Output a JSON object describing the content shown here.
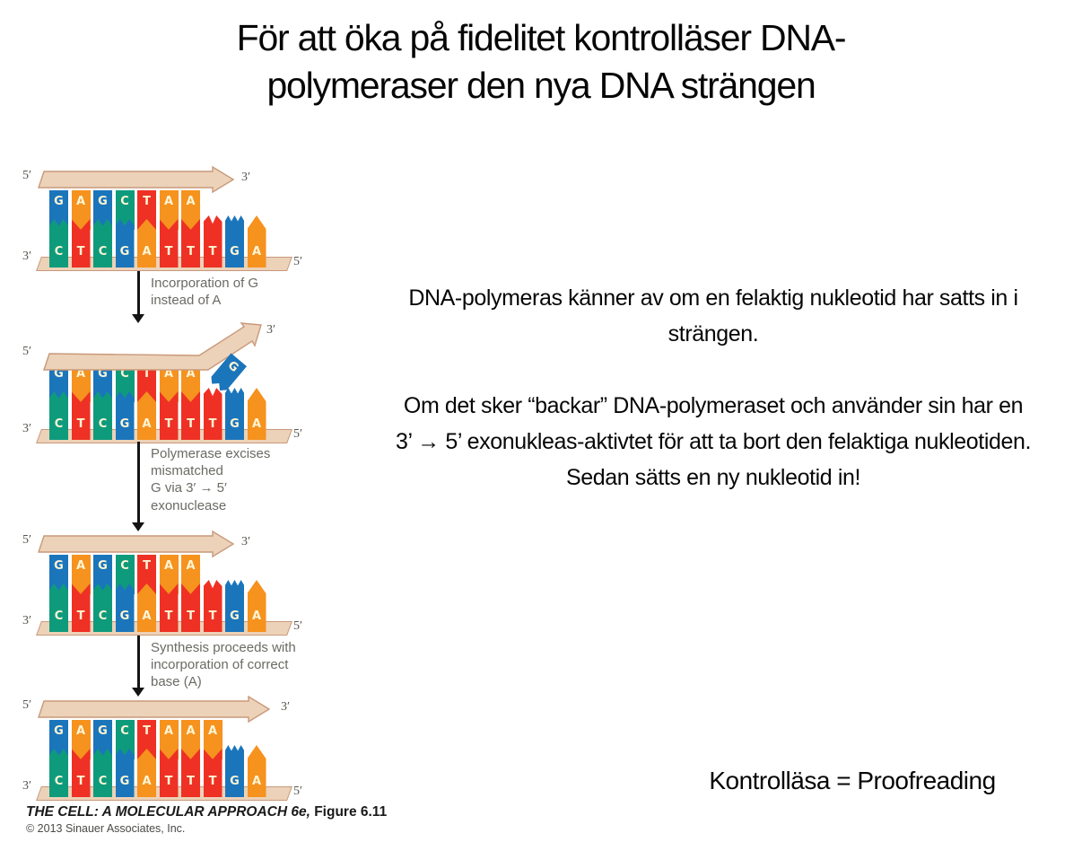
{
  "slide": {
    "title": "För att öka på fidelitet kontrolläser DNA-\npolymeraser den nya DNA strängen"
  },
  "figure": {
    "tan": "#ecd2b8",
    "tan_border": "#c9997b",
    "base_colors": {
      "G": "#1b75bb",
      "A": "#f6921e",
      "C": "#0e9b7c",
      "T": "#ee3124"
    },
    "panels": [
      {
        "arrow": "short",
        "pairs": [
          [
            "G",
            "C"
          ],
          [
            "A",
            "T"
          ],
          [
            "G",
            "C"
          ],
          [
            "C",
            "G"
          ],
          [
            "T",
            "A"
          ],
          [
            "A",
            "T"
          ],
          [
            "A",
            "T"
          ]
        ],
        "unpaired": [
          "T",
          "G",
          "A"
        ],
        "floating": null,
        "labels": {
          "top_left": "5′",
          "top_right": "3′",
          "bottom_left": "3′",
          "bottom_right": "5′"
        }
      },
      {
        "arrow": "bent",
        "pairs": [
          [
            "G",
            "C"
          ],
          [
            "A",
            "T"
          ],
          [
            "G",
            "C"
          ],
          [
            "C",
            "G"
          ],
          [
            "T",
            "A"
          ],
          [
            "A",
            "T"
          ],
          [
            "A",
            "T"
          ]
        ],
        "unpaired": [
          "T",
          "G",
          "A"
        ],
        "floating": "G",
        "labels": {
          "top_left": "5′",
          "top_right": "3′",
          "bottom_left": "3′",
          "bottom_right": "5′"
        }
      },
      {
        "arrow": "short",
        "pairs": [
          [
            "G",
            "C"
          ],
          [
            "A",
            "T"
          ],
          [
            "G",
            "C"
          ],
          [
            "C",
            "G"
          ],
          [
            "T",
            "A"
          ],
          [
            "A",
            "T"
          ],
          [
            "A",
            "T"
          ]
        ],
        "unpaired": [
          "T",
          "G",
          "A"
        ],
        "floating": null,
        "labels": {
          "top_left": "5′",
          "top_right": "3′",
          "bottom_left": "3′",
          "bottom_right": "5′"
        }
      },
      {
        "arrow": "long",
        "pairs": [
          [
            "G",
            "C"
          ],
          [
            "A",
            "T"
          ],
          [
            "G",
            "C"
          ],
          [
            "C",
            "G"
          ],
          [
            "T",
            "A"
          ],
          [
            "A",
            "T"
          ],
          [
            "A",
            "T"
          ],
          [
            "A",
            "T"
          ]
        ],
        "unpaired": [
          "G",
          "A"
        ],
        "floating": null,
        "labels": {
          "top_left": "5′",
          "top_right": "3′",
          "bottom_left": "3′",
          "bottom_right": "5′"
        }
      }
    ],
    "steps": [
      {
        "text": "Incorporation of G\ninstead of A"
      },
      {
        "text": "Polymerase excises\nmismatched\nG via 3′ → 5′\nexonuclease"
      },
      {
        "text": "Synthesis proceeds with\nincorporation of correct\nbase (A)"
      }
    ],
    "credit": {
      "book": "THE CELL: A MOLECULAR APPROACH 6e,",
      "figure": " Figure 6.11",
      "copyright": "© 2013 Sinauer Associates, Inc."
    }
  },
  "body": {
    "para1": "DNA-polymeras känner av om en felaktig nukleotid har satts in i strängen.",
    "para2": "Om det sker “backar” DNA-polymeraset och använder sin har en 3’ → 5’ exonukleas-aktivtet för att ta bort den felaktiga nukleotiden. Sedan sätts en ny nukleotid in!",
    "footer": "Kontrolläsa = Proofreading"
  }
}
